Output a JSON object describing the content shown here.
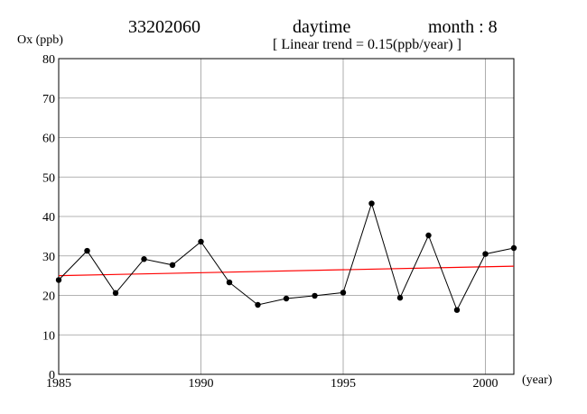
{
  "header": {
    "station_id": "33202060",
    "period": "daytime",
    "month": "month : 8",
    "trend": "[ Linear trend = 0.15(ppb/year) ]"
  },
  "chart_data": {
    "type": "line",
    "title": "",
    "ylabel": "Ox (ppb)",
    "xlabel": "(year)",
    "xlim": [
      1985,
      2001
    ],
    "ylim": [
      0,
      80
    ],
    "x_ticks": [
      1985,
      1990,
      1995,
      2000
    ],
    "y_ticks": [
      0,
      10,
      20,
      30,
      40,
      50,
      60,
      70,
      80
    ],
    "grid": true,
    "series": [
      {
        "color": "#000000",
        "x": [
          1985,
          1986,
          1987,
          1988,
          1989,
          1990,
          1991,
          1992,
          1993,
          1994,
          1995,
          1996,
          1997,
          1998,
          1999,
          2000,
          2001
        ],
        "values": [
          23.9,
          31.3,
          20.6,
          29.2,
          27.7,
          33.6,
          23.3,
          17.6,
          19.2,
          19.9,
          20.7,
          43.3,
          19.4,
          35.2,
          16.3,
          30.5,
          32.0
        ]
      }
    ],
    "trend_line": {
      "color": "#ff0000",
      "x": [
        1985,
        2001
      ],
      "values": [
        25.0,
        27.4
      ]
    }
  }
}
